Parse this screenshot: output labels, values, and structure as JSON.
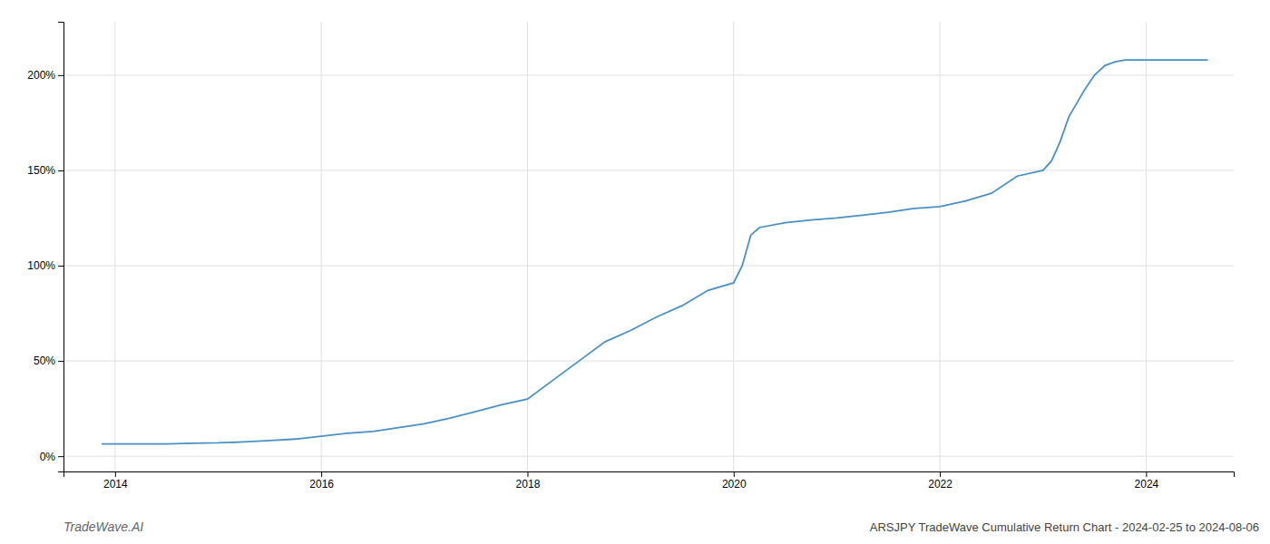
{
  "chart_data": {
    "type": "line",
    "title": "ARSJPY TradeWave Cumulative Return Chart - 2024-02-25 to 2024-08-06",
    "annotations": [
      "TradeWave.AI"
    ],
    "x": [
      2013.87,
      2014.0,
      2014.25,
      2014.5,
      2014.75,
      2015.0,
      2015.25,
      2015.5,
      2015.75,
      2016.0,
      2016.25,
      2016.5,
      2016.75,
      2017.0,
      2017.25,
      2017.5,
      2017.75,
      2018.0,
      2018.25,
      2018.5,
      2018.75,
      2019.0,
      2019.25,
      2019.5,
      2019.75,
      2020.0,
      2020.083,
      2020.166,
      2020.25,
      2020.5,
      2020.75,
      2021.0,
      2021.25,
      2021.5,
      2021.75,
      2022.0,
      2022.25,
      2022.5,
      2022.75,
      2023.0,
      2023.083,
      2023.166,
      2023.25,
      2023.4,
      2023.5,
      2023.6,
      2023.7,
      2023.8,
      2024.0,
      2024.2,
      2024.6
    ],
    "values": [
      6.5,
      6.5,
      6.5,
      6.5,
      6.8,
      7.0,
      7.5,
      8.2,
      9.0,
      10.5,
      12.0,
      13.0,
      15.0,
      17.0,
      20.0,
      23.5,
      27.0,
      30.0,
      40.0,
      50.0,
      60.0,
      66.0,
      73.0,
      79.0,
      87.0,
      91.0,
      100.0,
      116.0,
      120.0,
      122.5,
      124.0,
      125.0,
      126.5,
      128.0,
      130.0,
      131.0,
      134.0,
      138.0,
      147.0,
      150.0,
      155.0,
      165.0,
      178.0,
      192.0,
      200.0,
      205.0,
      207.0,
      208.0,
      208.0,
      208.0,
      208.0
    ],
    "color": "#4a90c4",
    "line_style": "solid",
    "xlim": [
      2013.5,
      2024.85
    ],
    "xticks": [
      2014,
      2016,
      2018,
      2020,
      2022,
      2024
    ],
    "ylim": [
      -8,
      228
    ],
    "yticks": [
      {
        "value": 0,
        "label": "0%"
      },
      {
        "value": 50,
        "label": "50%"
      },
      {
        "value": 100,
        "label": "100%"
      },
      {
        "value": 150,
        "label": "150%"
      },
      {
        "value": 200,
        "label": "200%"
      }
    ],
    "grid": true
  }
}
